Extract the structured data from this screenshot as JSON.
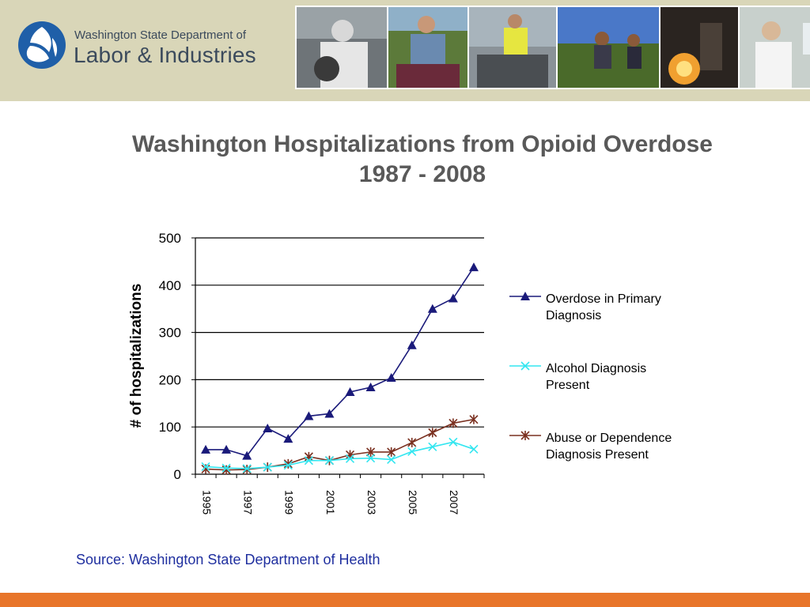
{
  "header": {
    "logo_line1": "Washington State Department of",
    "logo_line2": "Labor & Industries",
    "logo_colors": {
      "primary": "#1f5fa8",
      "secondary": "#0b3f7a"
    },
    "photo_icons": [
      "worker-respirator-photo",
      "grape-harvest-photo",
      "forklift-worker-photo",
      "field-workers-photo",
      "foundry-worker-photo",
      "lab-worker-photo"
    ]
  },
  "title_line1": "Washington Hospitalizations from Opioid Overdose",
  "title_line2": "1987 - 2008",
  "source": "Source: Washington State Department of Health",
  "colors": {
    "header_bg": "#d9d6b8",
    "bottom_bar": "#e8752a",
    "title": "#595959",
    "source": "#1f2f9f"
  },
  "chart_data": {
    "type": "line",
    "title": "Washington Hospitalizations from Opioid Overdose 1987 - 2008",
    "ylabel": "# of hospitalizations",
    "xlabel": "",
    "x": [
      1995,
      1996,
      1997,
      1998,
      1999,
      2000,
      2001,
      2002,
      2003,
      2004,
      2005,
      2006,
      2007,
      2008
    ],
    "x_tick_labels": [
      "1995",
      "1997",
      "1999",
      "2001",
      "2003",
      "2005",
      "2007"
    ],
    "ylim": [
      0,
      500
    ],
    "y_ticks": [
      "0",
      "100",
      "200",
      "300",
      "400",
      "500"
    ],
    "grid": "horizontal",
    "legend_position": "right",
    "series": [
      {
        "name": "Overdose in Primary Diagnosis",
        "name_lines": [
          "Overdose in Primary",
          "Diagnosis"
        ],
        "color": "#1a1a7a",
        "marker": "triangle",
        "values": [
          52,
          52,
          39,
          97,
          75,
          123,
          128,
          174,
          184,
          204,
          273,
          350,
          372,
          438
        ]
      },
      {
        "name": "Alcohol Diagnosis Present",
        "name_lines": [
          "Alcohol Diagnosis",
          "Present"
        ],
        "color": "#33e6f0",
        "marker": "x",
        "values": [
          16,
          13,
          12,
          15,
          19,
          29,
          29,
          33,
          34,
          31,
          48,
          58,
          68,
          53
        ]
      },
      {
        "name": "Abuse or Dependence Diagnosis Present",
        "name_lines": [
          "Abuse or Dependence",
          "Diagnosis Present"
        ],
        "color": "#7a3020",
        "marker": "star",
        "values": [
          11,
          9,
          10,
          15,
          22,
          37,
          29,
          41,
          47,
          47,
          67,
          88,
          108,
          116
        ]
      }
    ]
  }
}
